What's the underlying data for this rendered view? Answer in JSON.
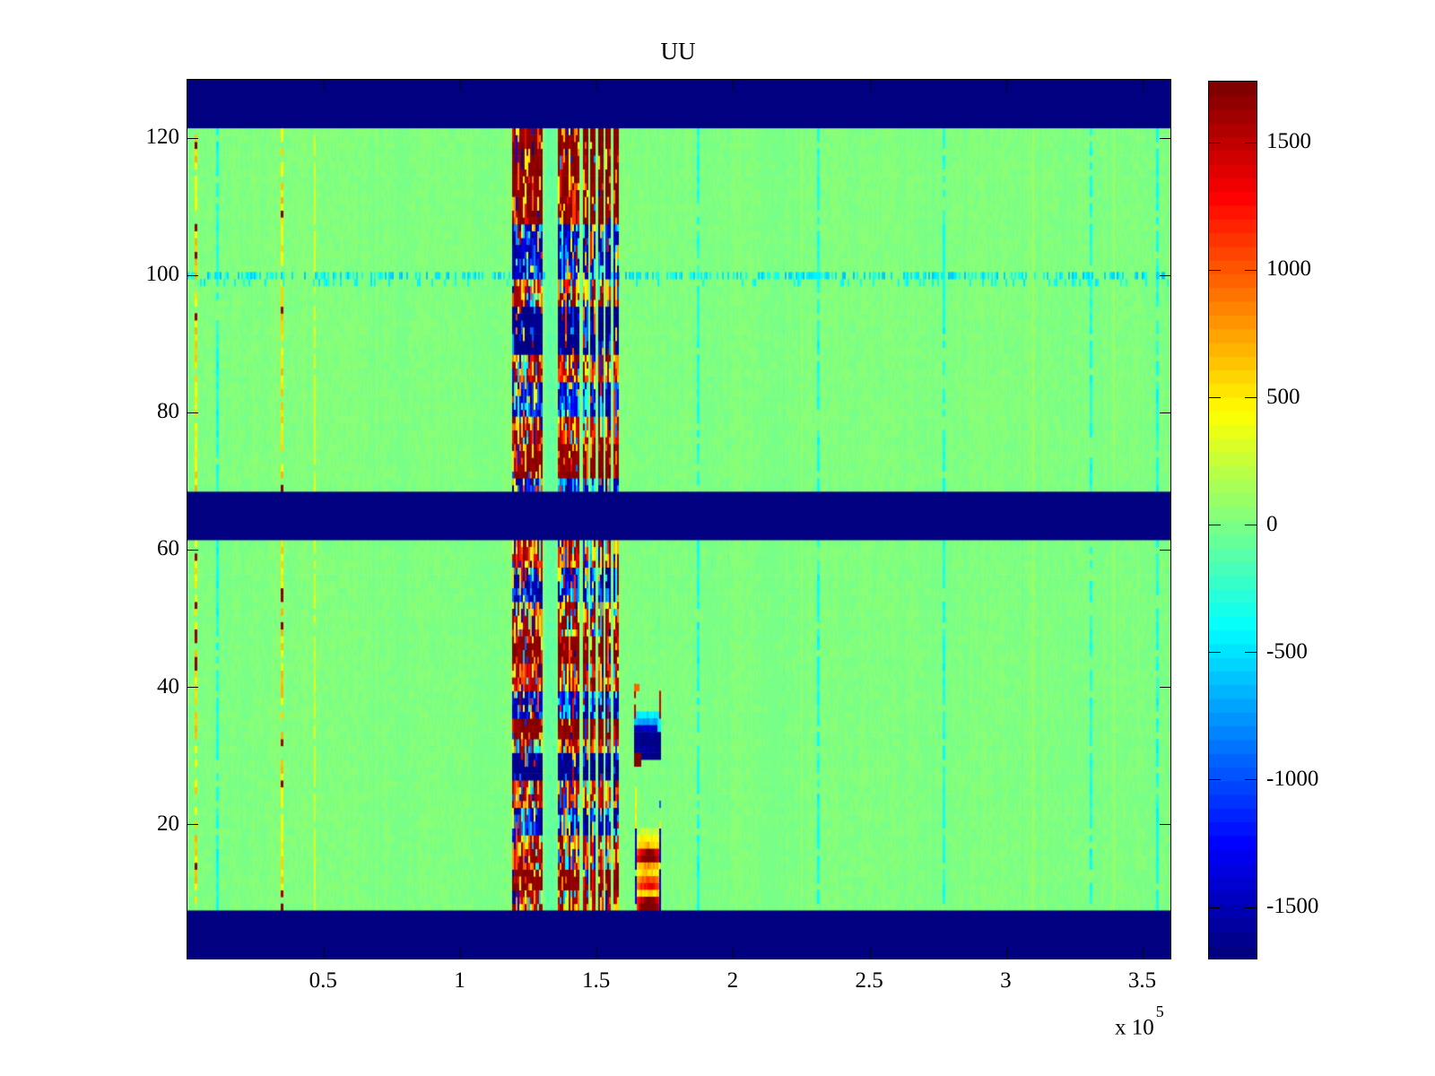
{
  "figure": {
    "title": "UU",
    "background": "#ffffff",
    "exponent_label": "x 10",
    "exponent_power": "5"
  },
  "chart_data": {
    "type": "heatmap",
    "title": "UU",
    "colormap": "jet",
    "grid": {
      "rows": 128,
      "cols": 548
    },
    "x_axis": {
      "range_units": [
        0,
        3.6
      ],
      "unit_scale": "1e5",
      "tick_values": [
        0.5,
        1,
        1.5,
        2,
        2.5,
        3,
        3.5
      ],
      "tick_labels": [
        "0.5",
        "1",
        "1.5",
        "2",
        "2.5",
        "3",
        "3.5"
      ]
    },
    "y_axis": {
      "range": [
        0.5,
        128.5
      ],
      "tick_values": [
        20,
        40,
        60,
        80,
        100,
        120
      ],
      "tick_labels": [
        "20",
        "40",
        "60",
        "80",
        "100",
        "120"
      ]
    },
    "color_axis": {
      "min": -1700,
      "max": 1740,
      "tick_values": [
        1500,
        1000,
        500,
        0,
        -500,
        -1000,
        -1500
      ],
      "tick_labels": [
        "1500",
        "1000",
        "500",
        "0",
        "-500",
        "-1000",
        "-1500"
      ],
      "levels": 64
    },
    "background_field": {
      "mean_value": 18,
      "cell_noise": 46,
      "upper_half_warm_bias_rows_above": 70
    },
    "solid_band_rows": [
      [
        1,
        7
      ],
      [
        62,
        68
      ],
      [
        122,
        128
      ]
    ],
    "noise_region": {
      "row_span": [
        8,
        121
      ],
      "strips_units": [
        [
          1.19,
          1.3
        ],
        [
          1.358,
          1.433
        ],
        [
          1.45,
          1.466
        ],
        [
          1.476,
          1.496
        ],
        [
          1.505,
          1.522
        ],
        [
          1.532,
          1.551
        ],
        [
          1.561,
          1.578
        ]
      ],
      "gap_line_units": [
        1.312,
        1.348
      ],
      "bands": [
        [
          108,
          121,
          "darkred"
        ],
        [
          100,
          107,
          "blue"
        ],
        [
          96,
          99,
          "red"
        ],
        [
          89,
          95,
          "darkblue"
        ],
        [
          85,
          88,
          "red"
        ],
        [
          80,
          84,
          "blue"
        ],
        [
          76,
          79,
          "red"
        ],
        [
          71,
          75,
          "darkred"
        ],
        [
          69,
          70,
          "blue"
        ],
        [
          58,
          61,
          "red"
        ],
        [
          53,
          57,
          "blue"
        ],
        [
          48,
          52,
          "red"
        ],
        [
          44,
          47,
          "darkred"
        ],
        [
          40,
          43,
          "red"
        ],
        [
          36,
          39,
          "blue"
        ],
        [
          33,
          35,
          "darkred"
        ],
        [
          31,
          32,
          "red"
        ],
        [
          27,
          30,
          "darkblue"
        ],
        [
          23,
          26,
          "red"
        ],
        [
          19,
          22,
          "blue"
        ],
        [
          14,
          18,
          "red"
        ],
        [
          11,
          13,
          "darkred"
        ],
        [
          8,
          10,
          "red"
        ]
      ]
    },
    "vlines": [
      {
        "u": 0.027,
        "type": "warm_dash"
      },
      {
        "u": 0.343,
        "type": "warm_dash"
      },
      {
        "u": 0.464,
        "type": "yellow"
      },
      {
        "u": 0.106,
        "type": "cyan"
      },
      {
        "u": 1.867,
        "type": "cyan"
      },
      {
        "u": 2.307,
        "type": "cyan"
      },
      {
        "u": 2.767,
        "type": "cyan"
      },
      {
        "u": 3.303,
        "type": "cyan"
      },
      {
        "u": 3.546,
        "type": "cyan"
      }
    ],
    "row_dash": {
      "row": 100,
      "value": -320,
      "density": 0.45
    },
    "cool_blob": {
      "u0": 1.637,
      "u1": 1.735,
      "row_values": [
        [
          36,
          -450
        ],
        [
          35,
          -700
        ],
        [
          34,
          -1500
        ],
        [
          33,
          -1650
        ],
        [
          32,
          -1650
        ],
        [
          31,
          -1600
        ],
        [
          30,
          -1700
        ]
      ],
      "edge_accent_value": 1450,
      "edge_accent_rows": [
        36,
        40
      ],
      "corner_value": 1700
    },
    "warm_blob": {
      "u0": 1.64,
      "u1": 1.735,
      "row_values": [
        [
          19,
          260
        ],
        [
          18,
          430
        ],
        [
          17,
          560
        ],
        [
          16,
          1450
        ],
        [
          15,
          1620
        ],
        [
          14,
          700
        ],
        [
          13,
          520
        ],
        [
          12,
          950
        ],
        [
          11,
          1150
        ],
        [
          10,
          560
        ],
        [
          9,
          1500
        ],
        [
          8,
          1680
        ]
      ],
      "edge_value": -1300,
      "top_dash_rows": [
        20,
        25
      ]
    }
  }
}
